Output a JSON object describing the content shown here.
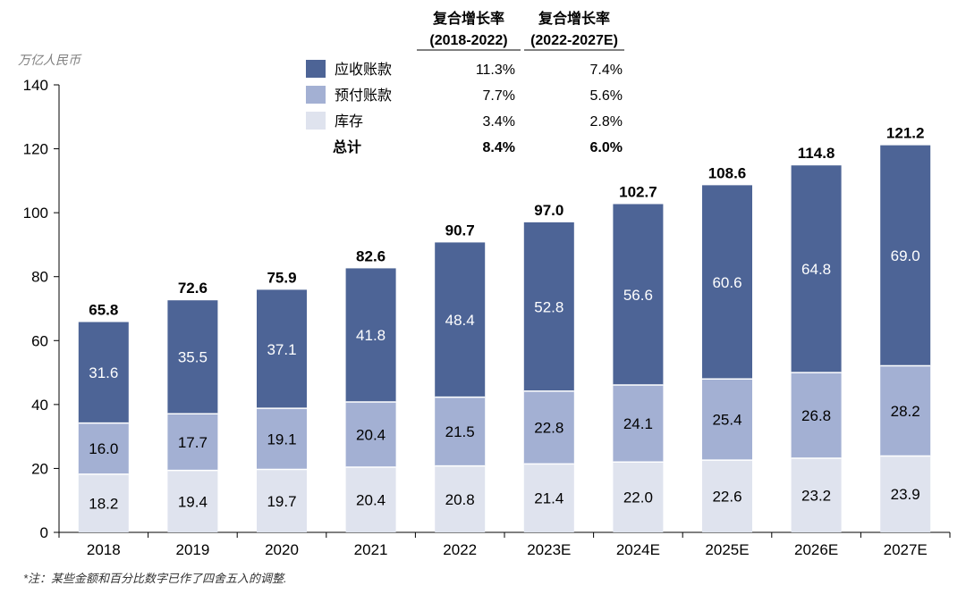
{
  "chart_data": {
    "type": "bar",
    "stacked": true,
    "unit_label": "万亿人民币",
    "categories": [
      "2018",
      "2019",
      "2020",
      "2021",
      "2022",
      "2023E",
      "2024E",
      "2025E",
      "2026E",
      "2027E"
    ],
    "series": [
      {
        "name": "库存",
        "color": "#dfe3ee",
        "values": [
          18.2,
          19.4,
          19.7,
          20.4,
          20.8,
          21.4,
          22.0,
          22.6,
          23.2,
          23.9
        ]
      },
      {
        "name": "预付账款",
        "color": "#a3b0d3",
        "values": [
          16.0,
          17.7,
          19.1,
          20.4,
          21.5,
          22.8,
          24.1,
          25.4,
          26.8,
          28.2
        ]
      },
      {
        "name": "应收账款",
        "color": "#4d6496",
        "values": [
          31.6,
          35.5,
          37.1,
          41.8,
          48.4,
          52.8,
          56.6,
          60.6,
          64.8,
          69.0
        ]
      }
    ],
    "totals": [
      "65.8",
      "72.6",
      "75.9",
      "82.6",
      "90.7",
      "97.0",
      "102.7",
      "108.6",
      "114.8",
      "121.2"
    ],
    "ylim": [
      0,
      140
    ],
    "yticks": [
      0,
      20,
      40,
      60,
      80,
      100,
      120,
      140
    ],
    "legend": {
      "placement": "top-center",
      "headers": [
        {
          "line1": "复合增长率",
          "line2": "(2018-2022)"
        },
        {
          "line1": "复合增长率",
          "line2": "(2022-2027E)"
        }
      ],
      "rows": [
        {
          "label": "应收账款",
          "color": "#4d6496",
          "cagr1": "11.3%",
          "cagr2": "7.4%"
        },
        {
          "label": "预付账款",
          "color": "#a3b0d3",
          "cagr1": "7.7%",
          "cagr2": "5.6%"
        },
        {
          "label": "库存",
          "color": "#dfe3ee",
          "cagr1": "3.4%",
          "cagr2": "2.8%"
        }
      ],
      "total_row": {
        "label": "总计",
        "cagr1": "8.4%",
        "cagr2": "6.0%"
      }
    },
    "footnote": "*注：某些金额和百分比数字已作了四舍五入的调整."
  }
}
